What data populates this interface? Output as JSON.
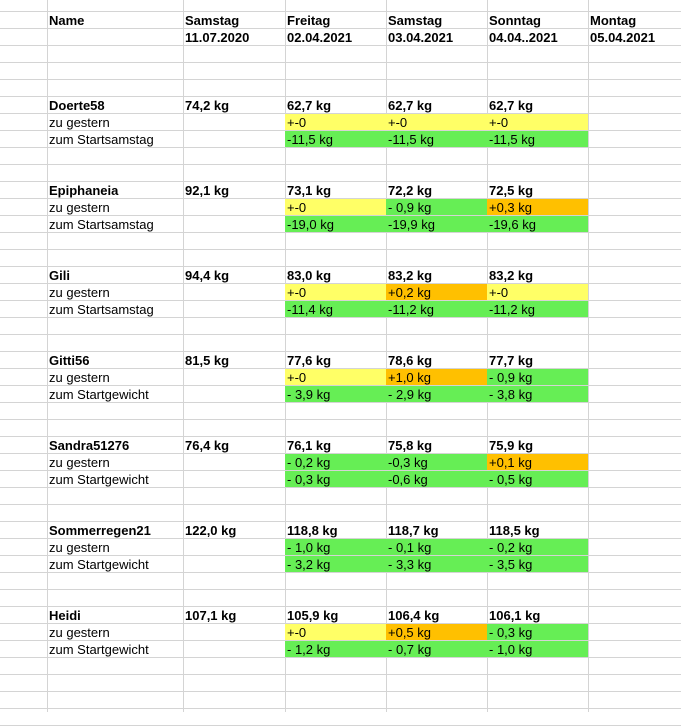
{
  "header": {
    "name_label": "Name",
    "days": [
      {
        "weekday": "Samstag",
        "date": "11.07.2020"
      },
      {
        "weekday": "Freitag",
        "date": "02.04.2021"
      },
      {
        "weekday": "Samstag",
        "date": "03.04.2021"
      },
      {
        "weekday": "Sonntag",
        "date": "04.04..2021"
      },
      {
        "weekday": "Montag",
        "date": "05.04.2021"
      }
    ]
  },
  "colors": {
    "green": "#66ee55",
    "yellow": "#ffff66",
    "orange": "#ffc000",
    "gridline": "#d4d4d4"
  },
  "people": [
    {
      "name": "Doerte58",
      "start": "74,2 kg",
      "weights": [
        "62,7 kg",
        "62,7 kg",
        "62,7 kg"
      ],
      "diff_label": "zu gestern",
      "diffs": [
        {
          "v": "+-0",
          "c": "yellow"
        },
        {
          "v": "+-0",
          "c": "yellow"
        },
        {
          "v": "+-0",
          "c": "yellow"
        }
      ],
      "total_label": "zum Startsamstag",
      "totals": [
        {
          "v": "-11,5 kg",
          "c": "green"
        },
        {
          "v": "-11,5 kg",
          "c": "green"
        },
        {
          "v": "-11,5 kg",
          "c": "green"
        }
      ]
    },
    {
      "name": "Epiphaneia",
      "start": "92,1 kg",
      "weights": [
        "73,1 kg",
        "72,2 kg",
        "72,5 kg"
      ],
      "diff_label": "zu gestern",
      "diffs": [
        {
          "v": "+-0",
          "c": "yellow"
        },
        {
          "v": "- 0,9 kg",
          "c": "green"
        },
        {
          "v": "+0,3 kg",
          "c": "orange"
        }
      ],
      "total_label": "zum Startsamstag",
      "totals": [
        {
          "v": "-19,0 kg",
          "c": "green"
        },
        {
          "v": "-19,9 kg",
          "c": "green"
        },
        {
          "v": "-19,6 kg",
          "c": "green"
        }
      ]
    },
    {
      "name": "Gili",
      "start": "94,4 kg",
      "weights": [
        "83,0 kg",
        "83,2 kg",
        "83,2 kg"
      ],
      "diff_label": "zu gestern",
      "diffs": [
        {
          "v": "+-0",
          "c": "yellow"
        },
        {
          "v": "+0,2 kg",
          "c": "orange"
        },
        {
          "v": "+-0",
          "c": "yellow"
        }
      ],
      "total_label": "zum Startsamstag",
      "totals": [
        {
          "v": "-11,4 kg",
          "c": "green"
        },
        {
          "v": "-11,2 kg",
          "c": "green"
        },
        {
          "v": "-11,2 kg",
          "c": "green"
        }
      ]
    },
    {
      "name": "Gitti56",
      "start": "81,5 kg",
      "weights": [
        "77,6 kg",
        "78,6 kg",
        "77,7 kg"
      ],
      "diff_label": "zu gestern",
      "diffs": [
        {
          "v": "+-0",
          "c": "yellow"
        },
        {
          "v": "+1,0 kg",
          "c": "orange"
        },
        {
          "v": "- 0,9 kg",
          "c": "green"
        }
      ],
      "total_label": "zum Startgewicht",
      "totals": [
        {
          "v": "- 3,9 kg",
          "c": "green"
        },
        {
          "v": "- 2,9 kg",
          "c": "green"
        },
        {
          "v": "- 3,8 kg",
          "c": "green"
        }
      ]
    },
    {
      "name": "Sandra51276",
      "start": "76,4 kg",
      "weights": [
        "76,1 kg",
        "75,8 kg",
        "75,9 kg"
      ],
      "diff_label": "zu gestern",
      "diffs": [
        {
          "v": "- 0,2 kg",
          "c": "green"
        },
        {
          "v": "-0,3 kg",
          "c": "green"
        },
        {
          "v": "+0,1 kg",
          "c": "orange"
        }
      ],
      "total_label": "zum Startgewicht",
      "totals": [
        {
          "v": "- 0,3 kg",
          "c": "green"
        },
        {
          "v": "-0,6 kg",
          "c": "green"
        },
        {
          "v": "- 0,5 kg",
          "c": "green"
        }
      ]
    },
    {
      "name": "Sommerregen21",
      "start": "122,0 kg",
      "weights": [
        "118,8 kg",
        "118,7 kg",
        "118,5 kg"
      ],
      "diff_label": "zu gestern",
      "diffs": [
        {
          "v": "- 1,0 kg",
          "c": "green"
        },
        {
          "v": "- 0,1 kg",
          "c": "green"
        },
        {
          "v": "- 0,2 kg",
          "c": "green"
        }
      ],
      "total_label": "zum Startgewicht",
      "totals": [
        {
          "v": "- 3,2 kg",
          "c": "green"
        },
        {
          "v": "- 3,3 kg",
          "c": "green"
        },
        {
          "v": "- 3,5 kg",
          "c": "green"
        }
      ]
    },
    {
      "name": "Heidi",
      "start": "107,1 kg",
      "weights": [
        "105,9 kg",
        "106,4 kg",
        "106,1 kg"
      ],
      "diff_label": "zu gestern",
      "diffs": [
        {
          "v": "+-0",
          "c": "yellow"
        },
        {
          "v": "+0,5 kg",
          "c": "orange"
        },
        {
          "v": "- 0,3 kg",
          "c": "green"
        }
      ],
      "total_label": "zum Startgewicht",
      "totals": [
        {
          "v": "- 1,2 kg",
          "c": "green"
        },
        {
          "v": "- 0,7 kg",
          "c": "green"
        },
        {
          "v": "- 1,0 kg",
          "c": "green"
        }
      ]
    }
  ]
}
